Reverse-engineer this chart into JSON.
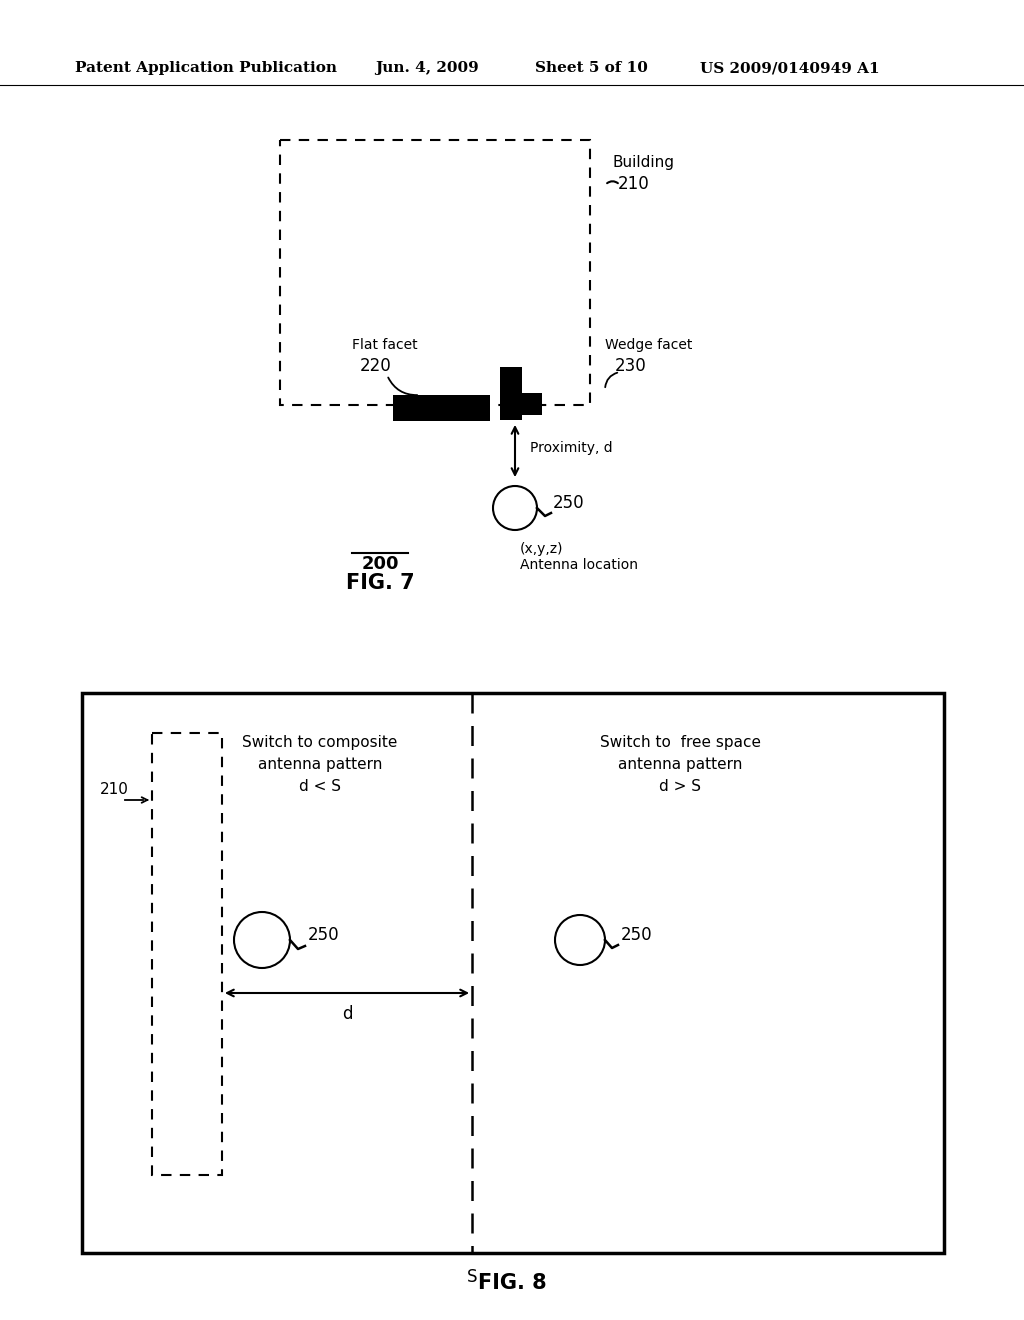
{
  "bg_color": "#ffffff",
  "header_text": "Patent Application Publication",
  "header_date": "Jun. 4, 2009",
  "header_sheet": "Sheet 5 of 10",
  "header_patent": "US 2009/0140949 A1",
  "fig7": {
    "building_label": "Building",
    "building_num": "210",
    "flat_facet_label": "Flat facet",
    "flat_facet_num": "220",
    "wedge_facet_label": "Wedge facet",
    "wedge_facet_num": "230",
    "proximity_label": "Proximity, d",
    "antenna_num": "250",
    "antenna_loc_label": "(x,y,z)",
    "antenna_loc_label2": "Antenna location",
    "fig_label": "200",
    "fig_caption": "FIG. 7"
  },
  "fig8": {
    "label_left_line1": "Switch to composite",
    "label_left_line2": "antenna pattern",
    "label_left_cond": "d < S",
    "label_right_line1": "Switch to  free space",
    "label_right_line2": "antenna pattern",
    "label_right_cond": "d > S",
    "building_num": "210",
    "antenna1_num": "250",
    "antenna2_num": "250",
    "d_label": "d",
    "s_label": "S",
    "fig_caption": "FIG. 8"
  }
}
